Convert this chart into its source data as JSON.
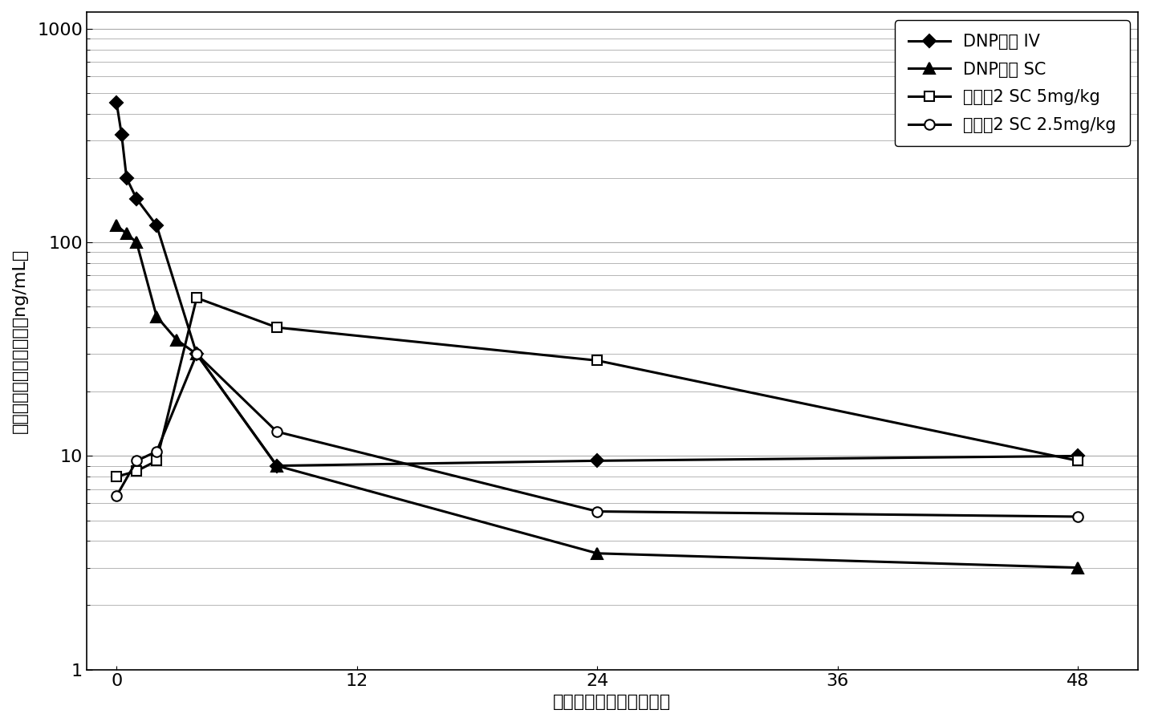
{
  "title": "",
  "xlabel": "给药后经过时间（小时）",
  "ylabel": "血浆中盐酸多奈派浓度（ng/mL）",
  "xlim": [
    -1.5,
    51
  ],
  "ylim": [
    1,
    1200
  ],
  "xticks": [
    0,
    12,
    24,
    36,
    48
  ],
  "series": [
    {
      "label": "DNP单体 IV",
      "x": [
        0,
        0.25,
        0.5,
        1,
        2,
        4,
        8,
        24,
        48
      ],
      "y": [
        450,
        320,
        200,
        160,
        120,
        30,
        9,
        9.5,
        10
      ],
      "marker": "D",
      "markersize": 8,
      "color": "#000000",
      "linewidth": 2.2,
      "markerfacecolor": "#000000"
    },
    {
      "label": "DNP单体 SC",
      "x": [
        0,
        0.5,
        1,
        2,
        3,
        4,
        8,
        24,
        48
      ],
      "y": [
        120,
        110,
        100,
        45,
        35,
        30,
        9,
        3.5,
        3.0
      ],
      "marker": "^",
      "markersize": 10,
      "color": "#000000",
      "linewidth": 2.2,
      "markerfacecolor": "#000000"
    },
    {
      "label": "比较例2 SC 5mg/kg",
      "x": [
        0,
        1,
        2,
        4,
        8,
        24,
        48
      ],
      "y": [
        8.0,
        8.5,
        9.5,
        55,
        40,
        28,
        9.5
      ],
      "marker": "s",
      "markersize": 9,
      "color": "#000000",
      "linewidth": 2.2,
      "markerfacecolor": "#ffffff"
    },
    {
      "label": "比较例2 SC 2.5mg/kg",
      "x": [
        0,
        1,
        2,
        4,
        8,
        24,
        48
      ],
      "y": [
        6.5,
        9.5,
        10.5,
        30,
        13,
        5.5,
        5.2
      ],
      "marker": "o",
      "markersize": 9,
      "color": "#000000",
      "linewidth": 2.2,
      "markerfacecolor": "#ffffff"
    }
  ],
  "legend_fontsize": 15,
  "axis_fontsize": 16,
  "tick_fontsize": 16,
  "background_color": "#ffffff",
  "grid_color": "#aaaaaa"
}
